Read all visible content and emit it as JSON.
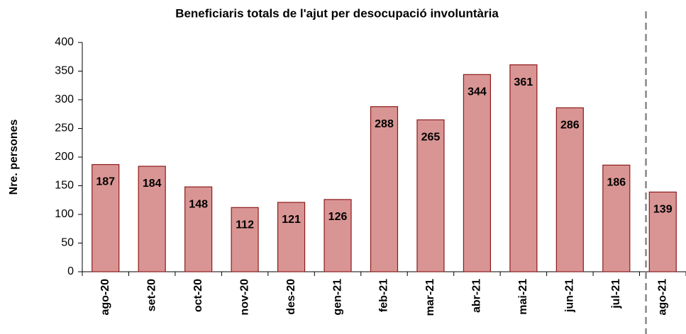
{
  "chart_data": {
    "type": "bar",
    "title": "Beneficiaris totals de l'ajut per desocupació involuntària",
    "y_label": "Nre. persones",
    "categories": [
      "ago-20",
      "set-20",
      "oct-20",
      "nov-20",
      "des-20",
      "gen-21",
      "feb-21",
      "mar-21",
      "abr-21",
      "mai-21",
      "jun-21",
      "jul-21",
      "ago-21"
    ],
    "values": [
      187,
      184,
      148,
      112,
      121,
      126,
      288,
      265,
      344,
      361,
      286,
      186,
      139
    ],
    "color": "#d99594",
    "ylim": [
      0,
      400
    ],
    "yticks": [
      0,
      50,
      100,
      150,
      200,
      250,
      300,
      350,
      400
    ],
    "grid": false
  }
}
